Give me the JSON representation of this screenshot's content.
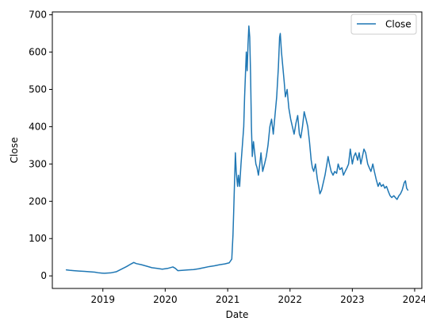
{
  "chart_data": {
    "type": "line",
    "title": "",
    "xlabel": "Date",
    "ylabel": "Close",
    "xlim": [
      "2018-03-11",
      "2024-02-12"
    ],
    "ylim": [
      -33.7,
      707.7
    ],
    "x_ticks": [
      "2019-01-01",
      "2020-01-01",
      "2021-01-01",
      "2022-01-01",
      "2023-01-01",
      "2024-01-01"
    ],
    "x_tick_labels": [
      "2019",
      "2020",
      "2021",
      "2022",
      "2023",
      "2024"
    ],
    "y_ticks": [
      0,
      100,
      200,
      300,
      400,
      500,
      600,
      700
    ],
    "y_tick_labels": [
      "0",
      "100",
      "200",
      "300",
      "400",
      "500",
      "600",
      "700"
    ],
    "grid": false,
    "legend": {
      "position": "top-right",
      "entries": [
        "Close"
      ]
    },
    "colors": {
      "series": "#1f77b4",
      "axis": "#000000",
      "legend_border": "#cccccc"
    },
    "series": [
      {
        "name": "Close",
        "x": [
          "2018-06-01",
          "2018-06-20",
          "2018-07-15",
          "2018-08-15",
          "2018-09-15",
          "2018-10-15",
          "2018-11-15",
          "2018-12-10",
          "2019-01-10",
          "2019-02-15",
          "2019-03-20",
          "2019-04-20",
          "2019-05-20",
          "2019-06-15",
          "2019-07-01",
          "2019-07-15",
          "2019-08-15",
          "2019-09-15",
          "2019-10-15",
          "2019-11-15",
          "2019-12-15",
          "2020-01-15",
          "2020-02-15",
          "2020-03-01",
          "2020-03-15",
          "2020-04-15",
          "2020-05-15",
          "2020-06-15",
          "2020-07-15",
          "2020-08-15",
          "2020-09-15",
          "2020-10-15",
          "2020-11-15",
          "2020-12-15",
          "2021-01-10",
          "2021-01-25",
          "2021-02-01",
          "2021-02-05",
          "2021-02-10",
          "2021-02-15",
          "2021-02-20",
          "2021-02-28",
          "2021-03-05",
          "2021-03-12",
          "2021-03-20",
          "2021-03-28",
          "2021-04-05",
          "2021-04-10",
          "2021-04-15",
          "2021-04-20",
          "2021-04-25",
          "2021-04-30",
          "2021-05-05",
          "2021-05-10",
          "2021-05-15",
          "2021-05-20",
          "2021-05-25",
          "2021-06-01",
          "2021-06-08",
          "2021-06-15",
          "2021-06-22",
          "2021-06-30",
          "2021-07-08",
          "2021-07-15",
          "2021-07-25",
          "2021-08-05",
          "2021-08-15",
          "2021-08-25",
          "2021-09-05",
          "2021-09-15",
          "2021-09-25",
          "2021-10-05",
          "2021-10-15",
          "2021-10-25",
          "2021-11-01",
          "2021-11-05",
          "2021-11-12",
          "2021-11-20",
          "2021-11-28",
          "2021-12-05",
          "2021-12-15",
          "2021-12-25",
          "2022-01-05",
          "2022-01-15",
          "2022-01-25",
          "2022-02-05",
          "2022-02-15",
          "2022-02-25",
          "2022-03-05",
          "2022-03-15",
          "2022-03-25",
          "2022-04-05",
          "2022-04-15",
          "2022-04-25",
          "2022-05-05",
          "2022-05-12",
          "2022-05-20",
          "2022-05-30",
          "2022-06-10",
          "2022-06-18",
          "2022-06-25",
          "2022-07-05",
          "2022-07-15",
          "2022-07-25",
          "2022-08-05",
          "2022-08-12",
          "2022-08-20",
          "2022-08-30",
          "2022-09-10",
          "2022-09-20",
          "2022-10-01",
          "2022-10-10",
          "2022-10-20",
          "2022-11-01",
          "2022-11-10",
          "2022-11-20",
          "2022-12-01",
          "2022-12-10",
          "2022-12-20",
          "2023-01-01",
          "2023-01-10",
          "2023-01-20",
          "2023-02-01",
          "2023-02-10",
          "2023-02-20",
          "2023-03-01",
          "2023-03-10",
          "2023-03-20",
          "2023-04-01",
          "2023-04-10",
          "2023-04-20",
          "2023-05-01",
          "2023-05-10",
          "2023-05-20",
          "2023-06-01",
          "2023-06-10",
          "2023-06-20",
          "2023-07-01",
          "2023-07-10",
          "2023-07-20",
          "2023-08-01",
          "2023-08-10",
          "2023-08-20",
          "2023-09-01",
          "2023-09-10",
          "2023-09-20",
          "2023-10-01",
          "2023-10-10",
          "2023-10-20",
          "2023-11-01",
          "2023-11-08",
          "2023-11-15",
          "2023-11-22"
        ],
        "values": [
          16,
          15,
          14,
          13,
          12,
          11,
          10,
          8,
          7,
          8,
          11,
          18,
          25,
          32,
          36,
          33,
          30,
          26,
          22,
          20,
          18,
          20,
          24,
          20,
          14,
          15,
          16,
          17,
          19,
          22,
          25,
          27,
          30,
          32,
          35,
          45,
          110,
          170,
          250,
          330,
          280,
          240,
          270,
          240,
          300,
          350,
          400,
          480,
          540,
          600,
          550,
          620,
          670,
          640,
          540,
          400,
          320,
          360,
          330,
          300,
          290,
          270,
          300,
          330,
          280,
          300,
          320,
          350,
          400,
          420,
          380,
          430,
          480,
          560,
          640,
          650,
          600,
          560,
          520,
          480,
          500,
          450,
          420,
          400,
          380,
          410,
          430,
          380,
          370,
          400,
          440,
          420,
          400,
          360,
          310,
          290,
          280,
          300,
          260,
          240,
          220,
          230,
          250,
          270,
          300,
          320,
          300,
          280,
          270,
          280,
          275,
          300,
          285,
          290,
          270,
          280,
          290,
          300,
          340,
          300,
          320,
          330,
          310,
          330,
          300,
          320,
          340,
          330,
          300,
          290,
          280,
          300,
          280,
          260,
          240,
          250,
          240,
          245,
          235,
          240,
          225,
          215,
          210,
          215,
          210,
          205,
          215,
          220,
          230,
          250,
          255,
          235,
          230
        ]
      }
    ]
  }
}
